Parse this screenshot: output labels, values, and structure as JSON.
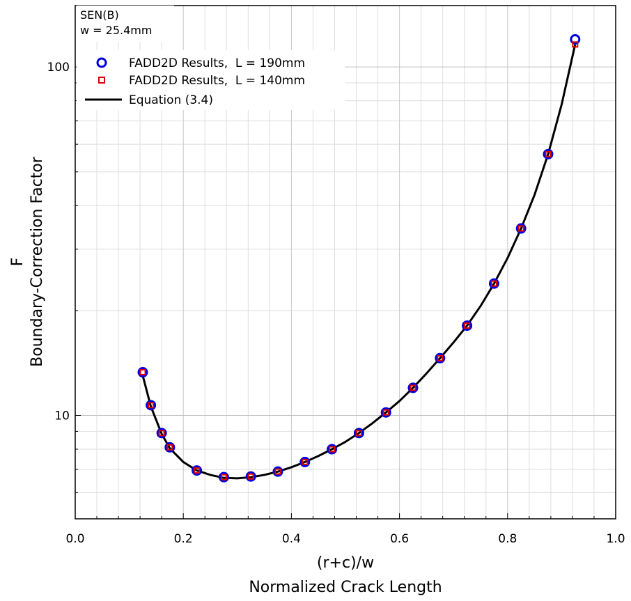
{
  "chart_data": {
    "type": "scatter",
    "annotation": [
      "SEN(B)",
      "w = 25.4mm"
    ],
    "xlabel": [
      "(r+c)/w",
      "Normalized Crack Length"
    ],
    "ylabel": [
      "F",
      "Boundary-Correction Factor"
    ],
    "xlim": [
      0.0,
      1.0
    ],
    "ylim": [
      5.05,
      150
    ],
    "yscale": "log",
    "grid": true,
    "legend_position": "top-left",
    "x_ticks": [
      "0.0",
      "0.2",
      "0.4",
      "0.6",
      "0.8",
      "1.0"
    ],
    "y_ticks": [
      "10",
      "100"
    ],
    "series": [
      {
        "name": "FADD2D Results,  L = 190mm",
        "marker": "circle",
        "color": "#0000dd",
        "x": [
          0.125,
          0.14,
          0.16,
          0.175,
          0.225,
          0.275,
          0.325,
          0.375,
          0.425,
          0.475,
          0.525,
          0.575,
          0.625,
          0.675,
          0.725,
          0.775,
          0.825,
          0.875,
          0.925
        ],
        "y": [
          13.3,
          10.7,
          8.9,
          8.1,
          6.95,
          6.65,
          6.68,
          6.9,
          7.35,
          8.0,
          8.9,
          10.2,
          12.0,
          14.6,
          18.1,
          23.9,
          34.4,
          56.2,
          120.0
        ]
      },
      {
        "name": "FADD2D Results,  L = 140mm",
        "marker": "square",
        "color": "#dd0000",
        "x": [
          0.125,
          0.14,
          0.16,
          0.175,
          0.225,
          0.275,
          0.325,
          0.375,
          0.425,
          0.475,
          0.525,
          0.575,
          0.625,
          0.675,
          0.725,
          0.775,
          0.825,
          0.875,
          0.925
        ],
        "y": [
          13.3,
          10.7,
          8.9,
          8.1,
          6.95,
          6.65,
          6.68,
          6.9,
          7.35,
          8.0,
          8.9,
          10.2,
          12.0,
          14.6,
          18.1,
          23.9,
          34.4,
          56.2,
          116.0
        ]
      },
      {
        "name": "Equation (3.4)",
        "marker": "line",
        "color": "#000000",
        "x": [
          0.125,
          0.14,
          0.16,
          0.175,
          0.2,
          0.225,
          0.25,
          0.275,
          0.3,
          0.325,
          0.35,
          0.375,
          0.4,
          0.425,
          0.45,
          0.475,
          0.5,
          0.525,
          0.55,
          0.575,
          0.6,
          0.625,
          0.65,
          0.675,
          0.7,
          0.725,
          0.75,
          0.775,
          0.8,
          0.825,
          0.85,
          0.875,
          0.9,
          0.925
        ],
        "y": [
          13.0,
          10.6,
          8.85,
          8.05,
          7.35,
          6.95,
          6.75,
          6.62,
          6.6,
          6.65,
          6.75,
          6.9,
          7.1,
          7.35,
          7.65,
          8.0,
          8.4,
          8.9,
          9.5,
          10.2,
          11.0,
          12.0,
          13.2,
          14.6,
          16.2,
          18.1,
          20.6,
          23.9,
          28.3,
          34.4,
          43.0,
          56.2,
          78.0,
          116.0
        ]
      }
    ]
  }
}
